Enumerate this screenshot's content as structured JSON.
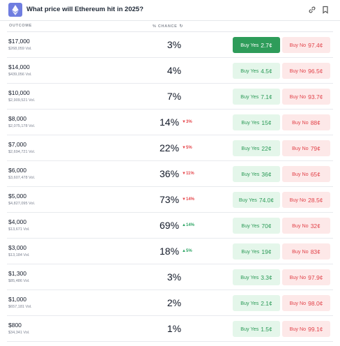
{
  "header": {
    "title": "What price will Ethereum hit in 2025?"
  },
  "columns": {
    "outcome": "OUTCOME",
    "chance": "% CHANCE"
  },
  "colors": {
    "logo": "#6f7de0",
    "yes_active": "#2e9c5a",
    "yes_bg": "#e4f6ea",
    "yes_text": "#2b9a57",
    "no_bg": "#fde8e8",
    "no_text": "#e2434a",
    "delta_down": "#e5484d",
    "delta_up": "#2ea565"
  },
  "rows": [
    {
      "price": "$17,000",
      "volume": "$268,059 Vol.",
      "chance": "3%",
      "delta": "",
      "delta_dir": "",
      "yes_label": "Buy Yes",
      "yes_price": "2.7¢",
      "no_label": "Buy No",
      "no_price": "97.4¢"
    },
    {
      "price": "$14,000",
      "volume": "$439,056 Vol.",
      "chance": "4%",
      "delta": "",
      "delta_dir": "",
      "yes_label": "Buy Yes",
      "yes_price": "4.5¢",
      "no_label": "Buy No",
      "no_price": "96.5¢"
    },
    {
      "price": "$10,000",
      "volume": "$2,909,521 Vol.",
      "chance": "7%",
      "delta": "",
      "delta_dir": "",
      "yes_label": "Buy Yes",
      "yes_price": "7.1¢",
      "no_label": "Buy No",
      "no_price": "93.7¢"
    },
    {
      "price": "$8,000",
      "volume": "$2,075,178 Vol.",
      "chance": "14%",
      "delta": "3%",
      "delta_dir": "down",
      "yes_label": "Buy Yes",
      "yes_price": "15¢",
      "no_label": "Buy No",
      "no_price": "88¢"
    },
    {
      "price": "$7,000",
      "volume": "$2,694,721 Vol.",
      "chance": "22%",
      "delta": "5%",
      "delta_dir": "down",
      "yes_label": "Buy Yes",
      "yes_price": "22¢",
      "no_label": "Buy No",
      "no_price": "79¢"
    },
    {
      "price": "$6,000",
      "volume": "$3,607,478 Vol.",
      "chance": "36%",
      "delta": "11%",
      "delta_dir": "down",
      "yes_label": "Buy Yes",
      "yes_price": "36¢",
      "no_label": "Buy No",
      "no_price": "65¢"
    },
    {
      "price": "$5,000",
      "volume": "$4,827,095 Vol.",
      "chance": "73%",
      "delta": "14%",
      "delta_dir": "down",
      "yes_label": "Buy Yes",
      "yes_price": "74.0¢",
      "no_label": "Buy No",
      "no_price": "28.5¢"
    },
    {
      "price": "$4,000",
      "volume": "$13,671 Vol.",
      "chance": "69%",
      "delta": "14%",
      "delta_dir": "up",
      "yes_label": "Buy Yes",
      "yes_price": "70¢",
      "no_label": "Buy No",
      "no_price": "32¢"
    },
    {
      "price": "$3,000",
      "volume": "$13,184 Vol.",
      "chance": "18%",
      "delta": "5%",
      "delta_dir": "up",
      "yes_label": "Buy Yes",
      "yes_price": "19¢",
      "no_label": "Buy No",
      "no_price": "83¢"
    },
    {
      "price": "$1,300",
      "volume": "$85,486 Vol.",
      "chance": "3%",
      "delta": "",
      "delta_dir": "",
      "yes_label": "Buy Yes",
      "yes_price": "3.3¢",
      "no_label": "Buy No",
      "no_price": "97.9¢"
    },
    {
      "price": "$1,000",
      "volume": "$657,181 Vol.",
      "chance": "2%",
      "delta": "",
      "delta_dir": "",
      "yes_label": "Buy Yes",
      "yes_price": "2.1¢",
      "no_label": "Buy No",
      "no_price": "98.0¢"
    },
    {
      "price": "$800",
      "volume": "$34,341 Vol.",
      "chance": "1%",
      "delta": "",
      "delta_dir": "",
      "yes_label": "Buy Yes",
      "yes_price": "1.5¢",
      "no_label": "Buy No",
      "no_price": "99.1¢"
    }
  ],
  "icons": {
    "logo": "ethereum-logo-icon",
    "link": "link-icon",
    "bookmark": "bookmark-icon",
    "refresh": "refresh-icon",
    "delta_up": "triangle-up-icon",
    "delta_down": "triangle-down-icon"
  }
}
